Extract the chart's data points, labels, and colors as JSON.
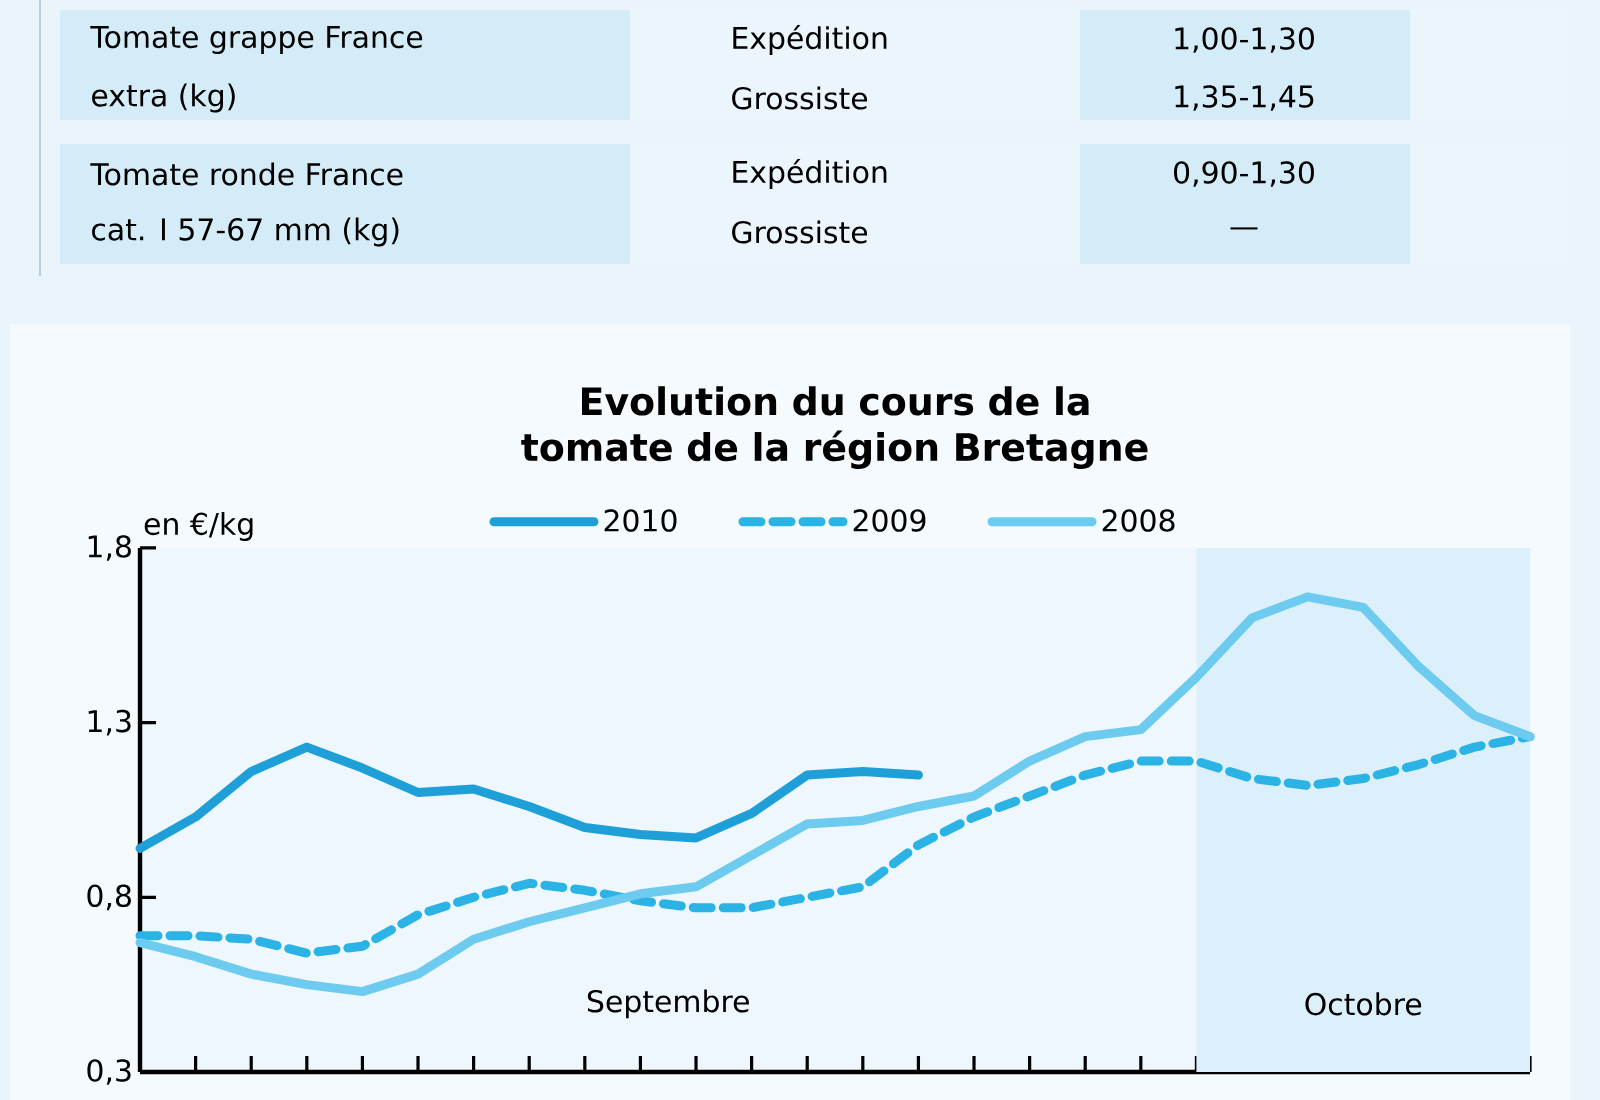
{
  "chart_data": {
    "type": "line",
    "title": "Evolution du cours de la tomate de la région Bretagne",
    "ylabel": "en €/kg",
    "categories": [
      null,
      null,
      null,
      null,
      null,
      null,
      null,
      null,
      null,
      null,
      null,
      null,
      null,
      null,
      null,
      null,
      null,
      null,
      null,
      null,
      null,
      null,
      null,
      null,
      null,
      null
    ],
    "ylim": [
      0.3,
      1.8
    ],
    "yticks": [
      {
        "value": 0.3,
        "label": "0,3"
      },
      {
        "value": 0.8,
        "label": "0,8"
      },
      {
        "value": 1.3,
        "label": "1,3"
      },
      {
        "value": 1.8,
        "label": "1,8"
      }
    ],
    "series": [
      {
        "name": "2010",
        "color": "#1e9fd8",
        "line_style": "solid",
        "values": [
          0.94,
          1.03,
          1.16,
          1.23,
          1.17,
          1.1,
          1.11,
          1.06,
          1.0,
          0.98,
          0.97,
          1.04,
          1.15,
          1.16,
          1.15,
          null,
          null,
          null,
          null,
          null,
          null,
          null,
          null,
          null,
          null,
          null
        ]
      },
      {
        "name": "2009",
        "color": "#2ab3e4",
        "line_style": "dashed",
        "values": [
          0.69,
          0.69,
          0.68,
          0.64,
          0.66,
          0.75,
          0.8,
          0.84,
          0.82,
          0.79,
          0.77,
          0.77,
          0.8,
          0.83,
          0.95,
          1.03,
          1.09,
          1.15,
          1.19,
          1.19,
          1.14,
          1.12,
          1.14,
          1.18,
          1.23,
          1.26
        ]
      },
      {
        "name": "2008",
        "color": "#6ccbef",
        "line_style": "solid",
        "values": [
          0.67,
          0.63,
          0.58,
          0.55,
          0.53,
          0.58,
          0.68,
          0.73,
          0.77,
          0.81,
          0.83,
          0.92,
          1.01,
          1.02,
          1.06,
          1.09,
          1.19,
          1.26,
          1.28,
          1.43,
          1.6,
          1.66,
          1.63,
          1.46,
          1.32,
          1.26
        ]
      }
    ],
    "legend": "top",
    "grid": false,
    "marker": "none",
    "annotations": [
      "Tomate grappe France",
      "extra (kg)",
      "Expédition",
      "Grossiste",
      "1,00-1,30",
      "1,35-1,45",
      "Tomate ronde France",
      "cat. I 57-67 mm (kg)",
      "Expédition",
      "Grossiste",
      "0,90-1,30",
      "—",
      "Septembre",
      "Octobre"
    ]
  }
}
